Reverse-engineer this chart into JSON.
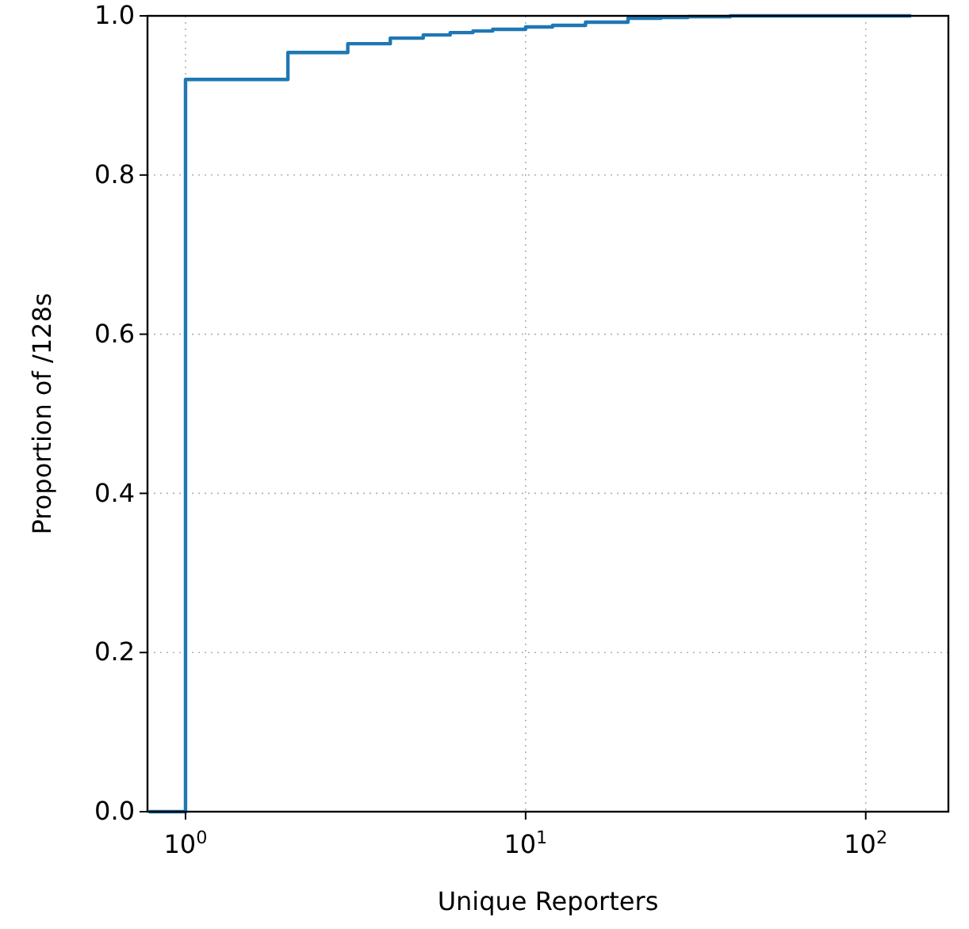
{
  "chart_data": {
    "type": "step",
    "xlabel": "Unique Reporters",
    "ylabel": "Proportion of /128s",
    "log": "x",
    "grid": true,
    "xlim": [
      0.773,
      175
    ],
    "ylim": [
      0,
      1
    ],
    "xticks": [
      {
        "value": 1,
        "label": "10$^{0}$"
      },
      {
        "value": 10,
        "label": "10$^{1}$"
      },
      {
        "value": 100,
        "label": "10$^{2}$"
      }
    ],
    "yticks": [
      {
        "value": 0,
        "label": "0.0"
      },
      {
        "value": 0.2,
        "label": "0.2"
      },
      {
        "value": 0.4,
        "label": "0.4"
      },
      {
        "value": 0.6,
        "label": "0.6"
      },
      {
        "value": 0.8,
        "label": "0.8"
      },
      {
        "value": 1,
        "label": "1.0"
      }
    ],
    "x": [
      0.78,
      1,
      2,
      3,
      4,
      5,
      6,
      7,
      8,
      10,
      12,
      15,
      20,
      25,
      30,
      40,
      136
    ],
    "series": [
      {
        "color": "#1f77b4",
        "values": [
          0,
          0.92,
          0.954,
          0.965,
          0.972,
          0.976,
          0.979,
          0.981,
          0.983,
          0.986,
          0.988,
          0.992,
          0.997,
          0.998,
          0.999,
          1,
          1
        ]
      }
    ]
  }
}
